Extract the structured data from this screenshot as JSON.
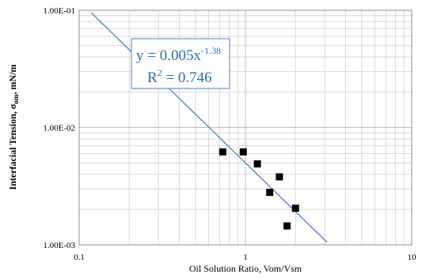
{
  "chart_data": {
    "type": "scatter",
    "x_scale": "log",
    "y_scale": "log",
    "xlim": [
      0.1,
      10
    ],
    "ylim": [
      0.001,
      0.1
    ],
    "x_ticks": [
      "0.1",
      "1",
      "10"
    ],
    "y_ticks": [
      "1.00E-03",
      "1.00E-02",
      "1.00E-01"
    ],
    "xlabel": "Oil Solution Ratio, Vom/Vsm",
    "ylabel": {
      "main": "Interfacial Tension, σ",
      "subscript": "om",
      "unit": ", mN/m"
    },
    "grid": true,
    "points": [
      {
        "x": 0.73,
        "y": 0.0062
      },
      {
        "x": 0.97,
        "y": 0.0062
      },
      {
        "x": 1.18,
        "y": 0.0049
      },
      {
        "x": 1.4,
        "y": 0.0028
      },
      {
        "x": 1.6,
        "y": 0.0038
      },
      {
        "x": 1.78,
        "y": 0.00145
      },
      {
        "x": 2.0,
        "y": 0.00205
      }
    ],
    "trendline": {
      "type": "power",
      "a": 0.005,
      "b": -1.38,
      "x_from": 0.118,
      "x_to": 3.1,
      "color": "#4A7FC1"
    },
    "annotation": {
      "equation_prefix": "y = 0.005x",
      "equation_exponent": "-1.38",
      "r2_prefix": "R",
      "r2_exponent": "2",
      "r2_suffix": " = 0.746",
      "color": "#2E6DB4"
    }
  }
}
